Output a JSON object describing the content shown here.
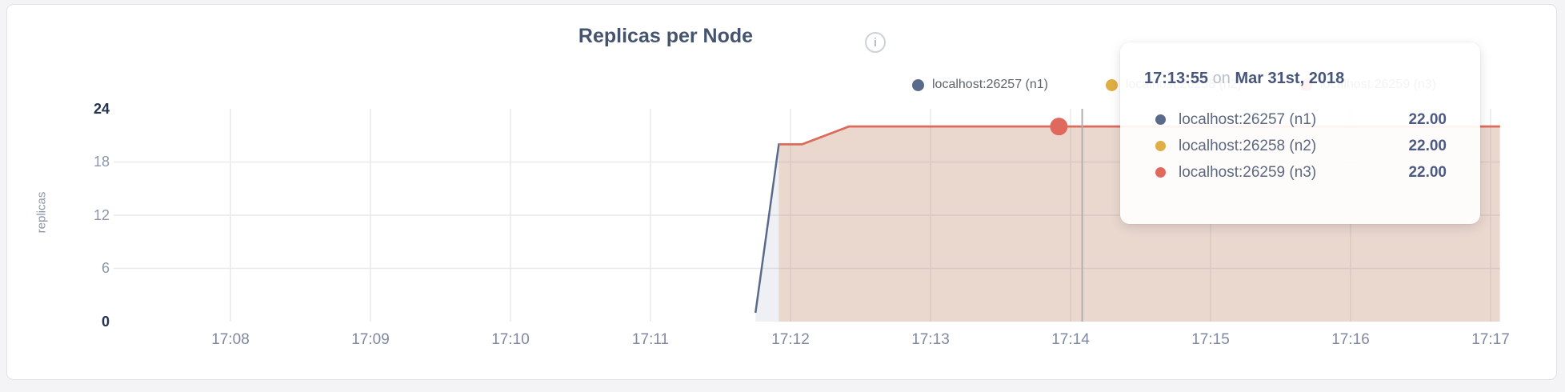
{
  "header": {
    "title": "Replicas per Node",
    "info_icon_glyph": "i"
  },
  "legend": {
    "items": [
      {
        "label": "localhost:26257 (n1)",
        "color": "#5a6a8a"
      },
      {
        "label": "localhost:26258 (n2)",
        "color": "#dfae44"
      },
      {
        "label": "localhost:26259 (n3)",
        "color": "#e0695e"
      }
    ]
  },
  "tooltip": {
    "time": "17:13:55",
    "connector": "on",
    "date": "Mar 31st, 2018",
    "rows": [
      {
        "name": "localhost:26257 (n1)",
        "value": "22.00",
        "color": "#5a6a8a"
      },
      {
        "name": "localhost:26258 (n2)",
        "value": "22.00",
        "color": "#dfae44"
      },
      {
        "name": "localhost:26259 (n3)",
        "value": "22.00",
        "color": "#e0695e"
      }
    ]
  },
  "chart_data": {
    "type": "line",
    "title": "Replicas per Node",
    "xlabel": "",
    "ylabel": "replicas",
    "x_tick_labels": [
      "17:08",
      "17:09",
      "17:10",
      "17:11",
      "17:12",
      "17:13",
      "17:14",
      "17:15",
      "17:16",
      "17:17"
    ],
    "y_tick_labels": [
      "24",
      "18",
      "12",
      "6",
      "0"
    ],
    "y_ticks": [
      0,
      6,
      12,
      18,
      24
    ],
    "ylim": [
      0,
      24
    ],
    "x_range": [
      "17:07:10",
      "17:17:04"
    ],
    "grid": true,
    "legend_position": "top-right",
    "series": [
      {
        "name": "localhost:26257 (n1)",
        "color": "#5a6a8a",
        "fill_alpha": 0.1,
        "points": [
          [
            "17:11:45",
            1
          ],
          [
            "17:11:55",
            20
          ],
          [
            "17:12:05",
            20
          ],
          [
            "17:12:25",
            22
          ],
          [
            "17:17:04",
            22
          ]
        ]
      },
      {
        "name": "localhost:26258 (n2)",
        "color": "#dfae44",
        "fill_alpha": 0.1,
        "points": [
          [
            "17:11:55",
            20
          ],
          [
            "17:12:05",
            20
          ],
          [
            "17:12:25",
            22
          ],
          [
            "17:17:04",
            22
          ]
        ]
      },
      {
        "name": "localhost:26259 (n3)",
        "color": "#e0695e",
        "fill_alpha": 0.13,
        "points": [
          [
            "17:11:55",
            20
          ],
          [
            "17:12:05",
            20
          ],
          [
            "17:12:25",
            22
          ],
          [
            "17:17:04",
            22
          ]
        ]
      }
    ],
    "hover": {
      "guideline_time": "17:14:05",
      "point_time": "17:13:55",
      "point_value": 22,
      "point_series": "localhost:26259 (n3)",
      "point_color": "#e0695e"
    }
  }
}
